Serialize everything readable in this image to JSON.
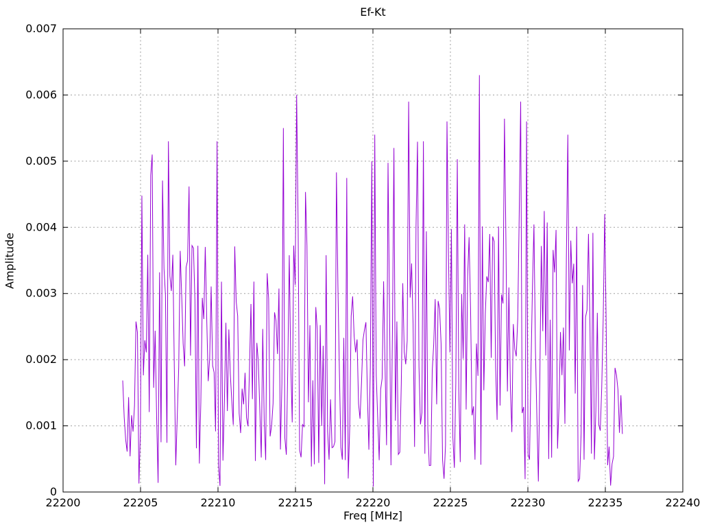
{
  "page": {
    "background": "#ffffff"
  },
  "chart_data": {
    "type": "line",
    "title": "Ef-Kt",
    "xlabel": "Freq [MHz]",
    "ylabel": "Amplitude",
    "xlim": [
      22200,
      22240
    ],
    "ylim": [
      0,
      0.007
    ],
    "xtick_values": [
      22200,
      22205,
      22210,
      22215,
      22220,
      22225,
      22230,
      22235,
      22240
    ],
    "xtick_labels": [
      "22200",
      "22205",
      "22210",
      "22215",
      "22220",
      "22225",
      "22230",
      "22235",
      "22240"
    ],
    "ytick_values": [
      0,
      0.001,
      0.002,
      0.003,
      0.004,
      0.005,
      0.006,
      0.007
    ],
    "ytick_labels": [
      "0",
      "0.001",
      "0.002",
      "0.003",
      "0.004",
      "0.005",
      "0.006",
      "0.007"
    ],
    "grid": true,
    "legend": "none",
    "line_color": "#9400d3",
    "grid_color": "#9e9e9e",
    "border_color": "#000000",
    "text_color": "#000000",
    "series": [
      {
        "name": "Ef-Kt",
        "style": "noisy-spectrum",
        "x_start": 22203.85,
        "x_end": 22236.1,
        "n_points": 340,
        "seed": 7,
        "noise_floor": 0.0004,
        "typical_mean": 0.002,
        "envelope_keypoints": [
          [
            22203.85,
            0.0017
          ],
          [
            22204.7,
            0.0036
          ],
          [
            22205.3,
            0.0052
          ],
          [
            22206.8,
            0.0054
          ],
          [
            22210.0,
            0.0054
          ],
          [
            22212.5,
            0.0049
          ],
          [
            22215.0,
            0.006
          ],
          [
            22218.0,
            0.0048
          ],
          [
            22220.0,
            0.0054
          ],
          [
            22222.3,
            0.0059
          ],
          [
            22225.0,
            0.0057
          ],
          [
            22226.9,
            0.0063
          ],
          [
            22229.7,
            0.006
          ],
          [
            22232.6,
            0.0054
          ],
          [
            22234.3,
            0.0042
          ],
          [
            22235.2,
            0.0036
          ],
          [
            22236.1,
            0.0019
          ]
        ],
        "notable_peaks": [
          [
            22205.8,
            0.0051
          ],
          [
            22206.8,
            0.0053
          ],
          [
            22209.9,
            0.0053
          ],
          [
            22214.2,
            0.0055
          ],
          [
            22215.1,
            0.006
          ],
          [
            22219.9,
            0.005
          ],
          [
            22220.1,
            0.0054
          ],
          [
            22221.4,
            0.0052
          ],
          [
            22222.3,
            0.0059
          ],
          [
            22223.3,
            0.0053
          ],
          [
            22224.8,
            0.0056
          ],
          [
            22226.9,
            0.0063
          ],
          [
            22229.5,
            0.0059
          ],
          [
            22229.9,
            0.0056
          ],
          [
            22232.6,
            0.0054
          ],
          [
            22233.9,
            0.0039
          ],
          [
            22235.0,
            0.0042
          ]
        ],
        "notable_lows": [
          [
            22220.05,
            8e-05
          ],
          [
            22224.6,
            0.0002
          ],
          [
            22233.3,
            0.0002
          ]
        ]
      }
    ]
  }
}
